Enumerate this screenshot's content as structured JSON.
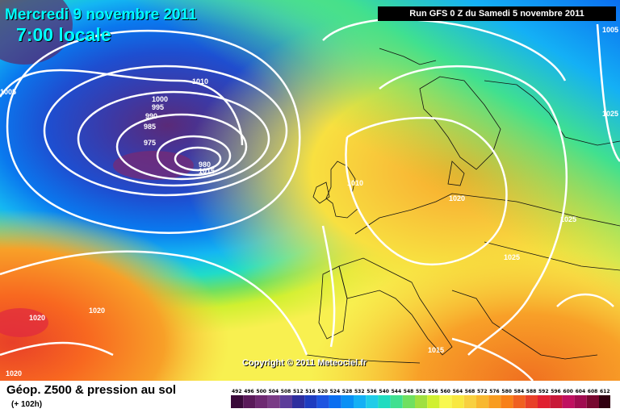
{
  "header": {
    "date_line": "Mercredi 9 novembre 2011",
    "time_line": "7:00 locale",
    "run_info": "Run GFS 0 Z du Samedi 5 novembre 2011"
  },
  "map": {
    "copyright": "Copyright © 2011 Meteociel.fr",
    "isobar_labels": [
      "1005",
      "1010",
      "1005",
      "1000",
      "995",
      "990",
      "985",
      "975",
      "980",
      "1015",
      "1010",
      "1025",
      "1020",
      "1025",
      "1025",
      "1020",
      "1020",
      "1015",
      "1020"
    ]
  },
  "footer": {
    "title": "Géop. Z500 & pression au sol",
    "subtitle": "(+ 102h)"
  },
  "color_scale": {
    "labels": [
      "492",
      "496",
      "500",
      "504",
      "508",
      "512",
      "516",
      "520",
      "524",
      "528",
      "532",
      "536",
      "540",
      "544",
      "548",
      "552",
      "556",
      "560",
      "564",
      "568",
      "572",
      "576",
      "580",
      "584",
      "588",
      "592",
      "596",
      "600",
      "604",
      "608",
      "612"
    ],
    "colors": [
      "#3a0a3a",
      "#5a1a5a",
      "#6e2a72",
      "#7a3c86",
      "#5c3c9a",
      "#2e2e9e",
      "#1e3cc0",
      "#1e54e0",
      "#0a6ef0",
      "#0a90f5",
      "#14b0f5",
      "#20cce8",
      "#20dcc0",
      "#40e090",
      "#70e060",
      "#a0e040",
      "#d0f030",
      "#f8f850",
      "#f8e840",
      "#f8d040",
      "#f8b830",
      "#f89c20",
      "#f88018",
      "#f06020",
      "#e84028",
      "#e02030",
      "#c81838",
      "#c01060",
      "#a00c50",
      "#780830",
      "#300010"
    ]
  }
}
